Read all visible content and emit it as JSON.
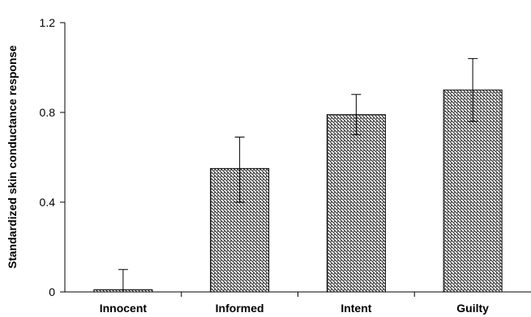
{
  "chart_data": {
    "type": "bar",
    "title": "",
    "xlabel": "",
    "ylabel": "Standardized skin conductance response",
    "categories": [
      "Innocent",
      "Informed",
      "Intent",
      "Guilty"
    ],
    "values": [
      0.01,
      0.55,
      0.79,
      0.9
    ],
    "error_upper": [
      0.1,
      0.69,
      0.88,
      1.04
    ],
    "error_lower": [
      0.0,
      0.4,
      0.7,
      0.76
    ],
    "ylim": [
      0,
      1.2
    ],
    "yticks": [
      0,
      0.4,
      0.8,
      1.2
    ],
    "ytick_labels": [
      "0",
      "0.4",
      "0.8",
      "1.2"
    ],
    "grid": false,
    "legend": "none",
    "bar_fill": "diagonal-hatch",
    "colors": {
      "bar_stroke": "#000000",
      "hatch": "#000000",
      "background": "#ffffff"
    }
  }
}
